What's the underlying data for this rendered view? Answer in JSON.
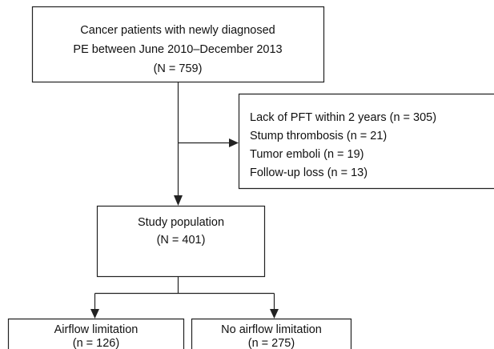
{
  "nodes": [
    {
      "lines": [
        "Cancer patients with newly diagnosed",
        "PE between June 2010–December 2013",
        "(N = 759)"
      ]
    },
    {
      "lines": [
        "Lack of PFT within 2 years (n = 305)",
        "Stump thrombosis (n = 21)",
        "Tumor emboli (n = 19)",
        "Follow-up loss (n = 13)"
      ]
    },
    {
      "lines": [
        "Study population",
        "(N = 401)"
      ]
    },
    {
      "lines": [
        "Airflow limitation",
        "(n = 126)"
      ]
    },
    {
      "lines": [
        "No airflow limitation",
        "(n = 275)"
      ]
    }
  ]
}
